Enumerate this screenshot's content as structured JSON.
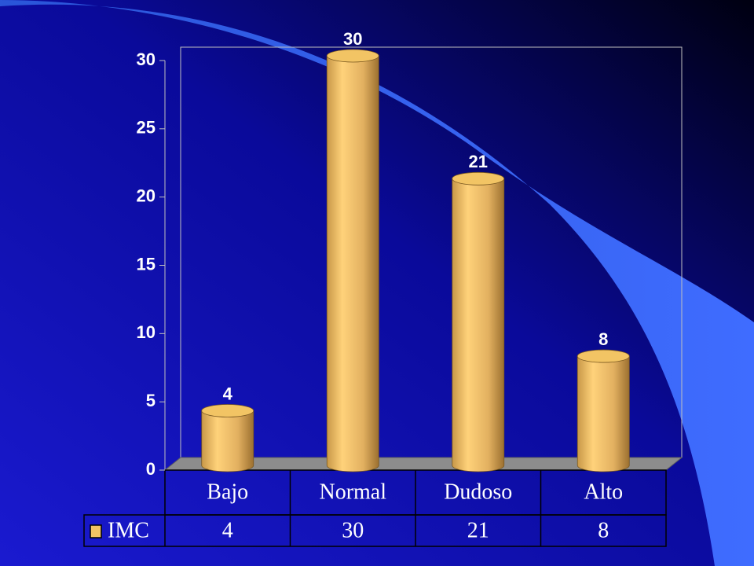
{
  "chart_data": {
    "type": "bar",
    "categories": [
      "Bajo",
      "Normal",
      "Dudoso",
      "Alto"
    ],
    "series": [
      {
        "name": "IMC",
        "color": "#f2c464",
        "values": [
          4,
          30,
          21,
          8
        ]
      }
    ],
    "ylim": [
      0,
      30
    ],
    "yticks": [
      0,
      5,
      10,
      15,
      20,
      25,
      30
    ]
  }
}
